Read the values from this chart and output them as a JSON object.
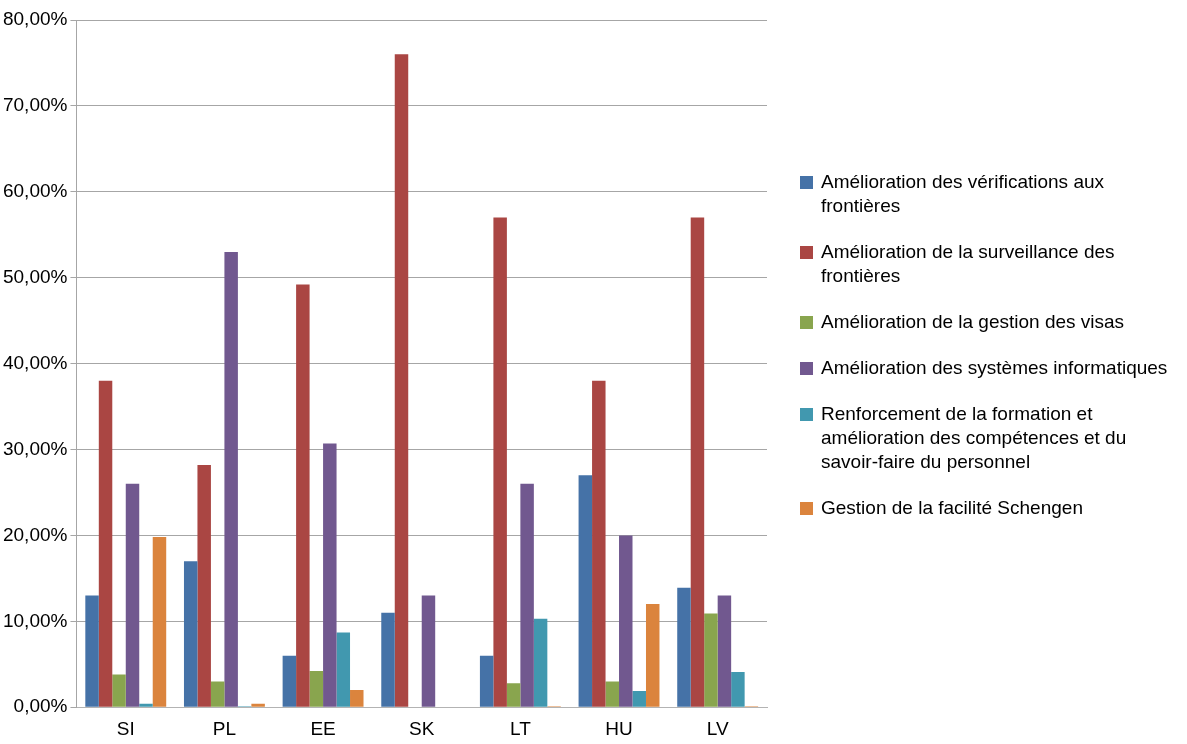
{
  "chart_data": {
    "type": "bar",
    "categories": [
      "SI",
      "PL",
      "EE",
      "SK",
      "LT",
      "HU",
      "LV"
    ],
    "series": [
      {
        "name": "Amélioration des vérifications aux frontières",
        "color": "#4572a7",
        "values": [
          13,
          17,
          6,
          11,
          6,
          27,
          13.9
        ]
      },
      {
        "name": "Amélioration de la surveillance des frontières",
        "color": "#aa4643",
        "values": [
          38,
          28.2,
          49.2,
          76,
          57,
          38,
          57
        ]
      },
      {
        "name": "Amélioration de la gestion des visas",
        "color": "#89a54e",
        "values": [
          3.8,
          3,
          4.2,
          0,
          2.8,
          3,
          10.9
        ]
      },
      {
        "name": "Amélioration des systèmes informatiques",
        "color": "#71588f",
        "values": [
          26,
          53,
          30.7,
          13,
          26,
          20,
          13
        ]
      },
      {
        "name": "Renforcement de la formation et amélioration des compétences et du savoir-faire du personnel",
        "color": "#4198af",
        "values": [
          0.4,
          0.1,
          8.7,
          0,
          10.3,
          1.9,
          4.1
        ]
      },
      {
        "name": "Gestion de la facilité Schengen",
        "color": "#db843d",
        "values": [
          19.8,
          0.4,
          2,
          0,
          0.1,
          12,
          0.1
        ]
      }
    ],
    "ylim": [
      0,
      80
    ],
    "yticks": [
      {
        "value": 0,
        "label": "0,00%"
      },
      {
        "value": 10,
        "label": "10,00%"
      },
      {
        "value": 20,
        "label": "20,00%"
      },
      {
        "value": 30,
        "label": "30,00%"
      },
      {
        "value": 40,
        "label": "40,00%"
      },
      {
        "value": 50,
        "label": "50,00%"
      },
      {
        "value": 60,
        "label": "60,00%"
      },
      {
        "value": 70,
        "label": "70,00%"
      },
      {
        "value": 80,
        "label": "80,00%"
      }
    ],
    "grid": "y",
    "legend": "right"
  }
}
